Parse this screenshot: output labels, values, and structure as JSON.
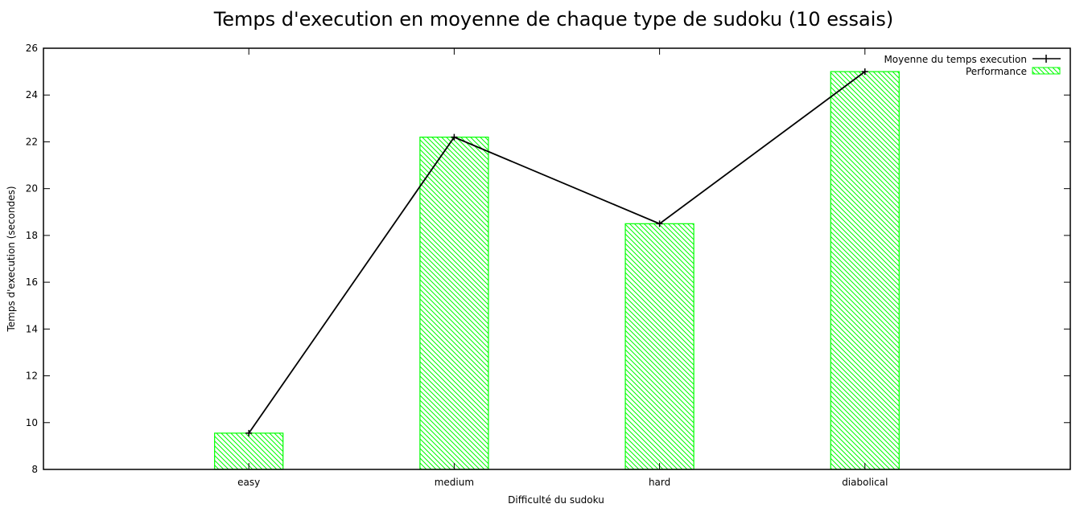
{
  "chart_data": {
    "type": "bar",
    "title": "Temps d'execution en moyenne de chaque type de sudoku (10 essais)",
    "xlabel": "Difficulté du sudoku",
    "ylabel": "Temps d'execution (secondes)",
    "categories": [
      "easy",
      "medium",
      "hard",
      "diabolical"
    ],
    "ylim": [
      8,
      26
    ],
    "yticks": [
      8,
      10,
      12,
      14,
      16,
      18,
      20,
      22,
      24,
      26
    ],
    "grid": false,
    "legend_position": "top-right",
    "series": [
      {
        "name": "Moyenne du temps execution",
        "kind": "line",
        "color": "#000000",
        "values": [
          9.55,
          22.2,
          18.5,
          25.0
        ]
      },
      {
        "name": "Performance",
        "kind": "bar",
        "color": "#00ff00",
        "pattern": "diagonal-hatch",
        "values": [
          9.55,
          22.2,
          18.5,
          25.0
        ]
      }
    ]
  }
}
